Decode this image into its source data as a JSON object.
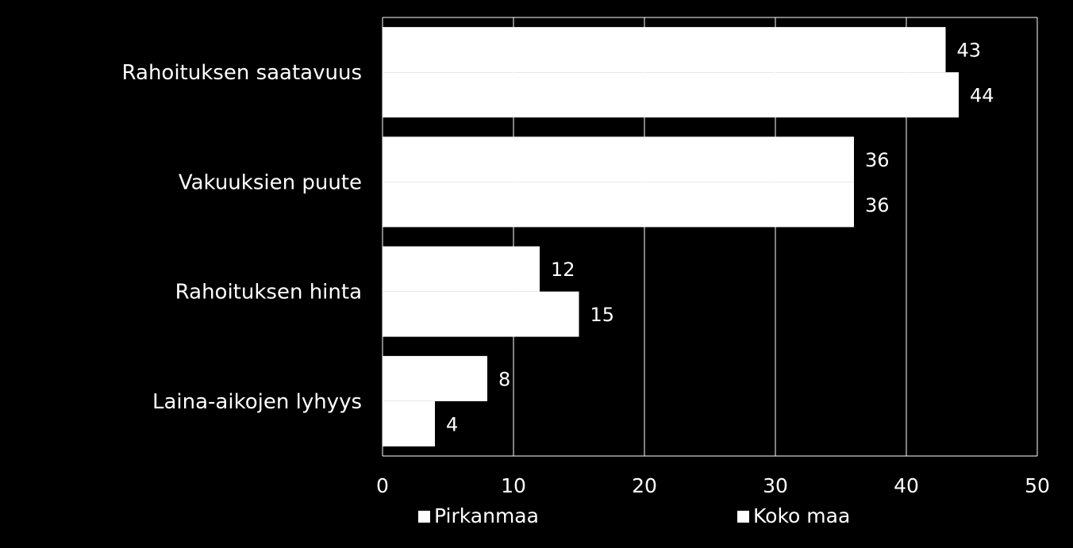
{
  "chart_data": {
    "type": "bar",
    "orientation": "horizontal",
    "categories": [
      "Rahoituksen saatavuus",
      "Vakuuksien puute",
      "Rahoituksen hinta",
      "Laina-aikojen lyhyys"
    ],
    "series": [
      {
        "name": "Pirkanmaa",
        "values": [
          43,
          36,
          12,
          8
        ]
      },
      {
        "name": "Koko maa",
        "values": [
          44,
          36,
          15,
          4
        ]
      }
    ],
    "xlim": [
      0,
      50
    ],
    "xticks": [
      0,
      10,
      20,
      30,
      40,
      50
    ],
    "grid": true,
    "legend_position": "bottom",
    "colors": {
      "background": "#000000",
      "bar": "#ffffff",
      "grid": "#ffffff",
      "text": "#ffffff"
    }
  }
}
